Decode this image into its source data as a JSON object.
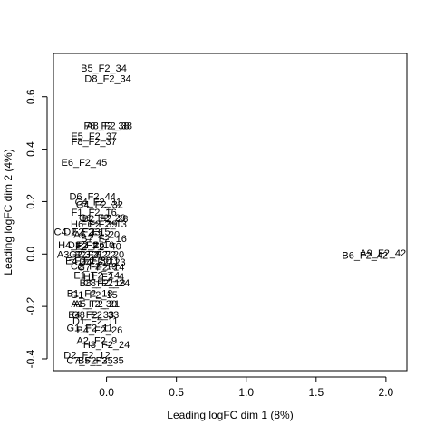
{
  "chart_data": {
    "type": "scatter",
    "title": "",
    "xlabel": "Leading logFC dim 1 (8%)",
    "ylabel": "Leading logFC dim 2 (4%)",
    "xlim": [
      -0.38,
      2.15
    ],
    "ylim": [
      -0.445,
      0.765
    ],
    "x_ticks": [
      0.0,
      0.5,
      1.0,
      1.5,
      2.0
    ],
    "x_tick_labels": [
      "0.0",
      "0.5",
      "1.0",
      "1.5",
      "2.0"
    ],
    "y_ticks": [
      -0.4,
      -0.2,
      0.0,
      0.2,
      0.4,
      0.6
    ],
    "y_tick_labels": [
      "-0.4",
      "-0.2",
      "0.0",
      "0.2",
      "0.4",
      "0.6"
    ],
    "grid": false,
    "legend": "none",
    "points": [
      {
        "label": "B5_F2_34",
        "x": -0.02,
        "y": 0.71
      },
      {
        "label": "D8_F2_34",
        "x": 0.01,
        "y": 0.67
      },
      {
        "label": "F8_F2_38",
        "x": 0.0,
        "y": 0.49
      },
      {
        "label": "A8_F2_38",
        "x": 0.02,
        "y": 0.49
      },
      {
        "label": "E5_F2_37",
        "x": -0.09,
        "y": 0.45
      },
      {
        "label": "F8_F2_37",
        "x": -0.09,
        "y": 0.43
      },
      {
        "label": "E6_F2_45",
        "x": -0.16,
        "y": 0.35
      },
      {
        "label": "D6_F2_44",
        "x": -0.1,
        "y": 0.22
      },
      {
        "label": "C4_F2_31",
        "x": -0.06,
        "y": 0.2
      },
      {
        "label": "G4_F2_32",
        "x": -0.05,
        "y": 0.19
      },
      {
        "label": "F1_F2_16",
        "x": -0.09,
        "y": 0.16
      },
      {
        "label": "G1_F2_29",
        "x": -0.03,
        "y": 0.14
      },
      {
        "label": "B2_F2_28",
        "x": -0.01,
        "y": 0.135
      },
      {
        "label": "H6_F2_39",
        "x": -0.09,
        "y": 0.115
      },
      {
        "label": "E6_F2_13",
        "x": -0.02,
        "y": 0.115
      },
      {
        "label": "C4_F2_33",
        "x": -0.21,
        "y": 0.085
      },
      {
        "label": "D2_F2_15",
        "x": -0.14,
        "y": 0.085
      },
      {
        "label": "A5_F2_20",
        "x": -0.07,
        "y": 0.075
      },
      {
        "label": "B7_F2_16",
        "x": -0.02,
        "y": 0.06
      },
      {
        "label": "H4_F2_26",
        "x": -0.18,
        "y": 0.035
      },
      {
        "label": "D3_F2_10",
        "x": -0.11,
        "y": 0.035
      },
      {
        "label": "E2_F2_40",
        "x": -0.06,
        "y": 0.03
      },
      {
        "label": "A3_F2_21",
        "x": -0.19,
        "y": 0.0
      },
      {
        "label": "G2_F2_22",
        "x": -0.1,
        "y": 0.0
      },
      {
        "label": "C3_F2_20",
        "x": -0.04,
        "y": 0.0
      },
      {
        "label": "E4_F2_30",
        "x": -0.13,
        "y": -0.025
      },
      {
        "label": "F2_F2_11",
        "x": -0.07,
        "y": -0.025
      },
      {
        "label": "D4_F2_23",
        "x": -0.03,
        "y": -0.03
      },
      {
        "label": "C2_F2_19",
        "x": -0.09,
        "y": -0.045
      },
      {
        "label": "G7_F2_14",
        "x": -0.04,
        "y": -0.05
      },
      {
        "label": "E1_F2_14",
        "x": -0.07,
        "y": -0.08
      },
      {
        "label": "H1_F2_4",
        "x": -0.02,
        "y": -0.085
      },
      {
        "label": "B8_F2_18",
        "x": -0.03,
        "y": -0.11
      },
      {
        "label": "C8_F2_24",
        "x": 0.0,
        "y": -0.11
      },
      {
        "label": "B1_F2_18",
        "x": -0.12,
        "y": -0.15
      },
      {
        "label": "G1_F2_15",
        "x": -0.09,
        "y": -0.155
      },
      {
        "label": "A1_F2_30",
        "x": -0.09,
        "y": -0.19
      },
      {
        "label": "A5_F2_21",
        "x": -0.07,
        "y": -0.19
      },
      {
        "label": "E4_F2_33",
        "x": -0.11,
        "y": -0.23
      },
      {
        "label": "G8_F2_33",
        "x": -0.08,
        "y": -0.23
      },
      {
        "label": "D1_F2_11",
        "x": -0.08,
        "y": -0.255
      },
      {
        "label": "G1_F2_11",
        "x": -0.12,
        "y": -0.28
      },
      {
        "label": "B4_F2_26",
        "x": -0.05,
        "y": -0.29
      },
      {
        "label": "A2_F2_9",
        "x": -0.07,
        "y": -0.33
      },
      {
        "label": "H3_F2_24",
        "x": 0.0,
        "y": -0.345
      },
      {
        "label": "D2_F2_12",
        "x": -0.14,
        "y": -0.385
      },
      {
        "label": "C7_F2_35",
        "x": -0.12,
        "y": -0.405
      },
      {
        "label": "B5_F2_35",
        "x": -0.04,
        "y": -0.405
      },
      {
        "label": "A9_F2_42",
        "x": 1.98,
        "y": 0.005
      },
      {
        "label": "B6_F2_42",
        "x": 1.85,
        "y": -0.005
      }
    ]
  }
}
